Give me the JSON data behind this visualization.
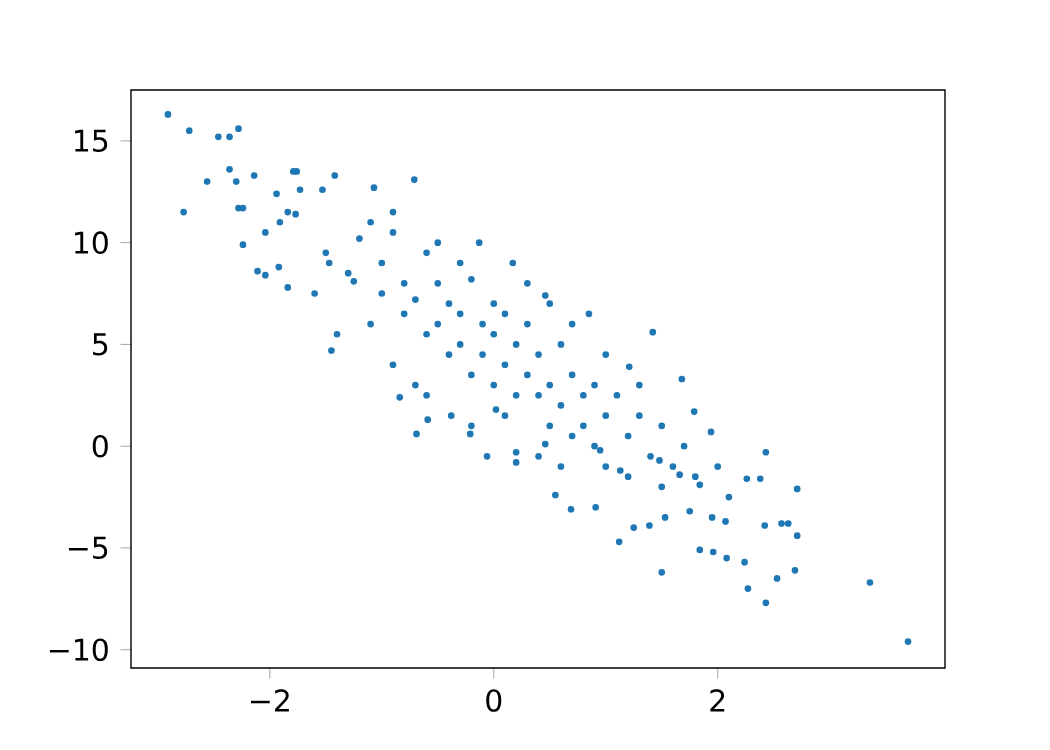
{
  "chart_data": {
    "type": "scatter",
    "color": "#1f77b4",
    "marker": "circle",
    "grid": false,
    "xlim": [
      -3.24,
      4.03
    ],
    "ylim": [
      -10.9,
      17.5
    ],
    "xticks": [
      {
        "value": -2,
        "label": "−2"
      },
      0,
      2
    ],
    "yticks": [
      {
        "value": -10,
        "label": "−10"
      },
      {
        "value": -5,
        "label": "−5"
      },
      0,
      5,
      10,
      15
    ],
    "x": [
      -2.91,
      -2.72,
      -2.56,
      -2.77,
      -2.46,
      -2.36,
      -2.28,
      -2.36,
      -2.3,
      -2.28,
      -2.24,
      -2.24,
      -2.14,
      -2.11,
      -2.04,
      -2.04,
      -1.94,
      -1.92,
      -1.84,
      -1.79,
      -1.76,
      -1.73,
      -1.77,
      -1.84,
      -1.91,
      -1.53,
      -1.42,
      -1.07,
      -0.71,
      -1.47,
      -1.45,
      -1.25,
      -0.84,
      -0.69,
      -0.59,
      -0.13,
      0.17,
      0.46,
      0.85,
      1.42,
      1.21,
      1.68,
      1.79,
      1.94,
      2.26,
      2.43,
      2.71,
      2.38,
      2.42,
      2.57,
      2.63,
      2.71,
      1.5,
      1.84,
      1.96,
      2.08,
      2.24,
      2.27,
      2.43,
      2.53,
      2.69,
      3.36,
      3.7,
      1.12,
      0.55,
      0.69,
      0.91,
      1.25,
      1.39,
      1.53,
      1.75,
      1.95,
      2.07,
      0.2,
      -0.06,
      -0.21,
      -0.38,
      0.02,
      0.46,
      0.95,
      1.13,
      1.48,
      1.66,
      1.84,
      -1.5,
      -1.3,
      -1.2,
      -1.0,
      -1.0,
      -0.9,
      -0.8,
      -0.8,
      -0.7,
      -0.6,
      -0.6,
      -0.5,
      -0.5,
      -0.4,
      -0.4,
      -0.3,
      -0.3,
      -0.2,
      -0.2,
      -0.1,
      -0.1,
      0.0,
      0.0,
      0.0,
      0.1,
      0.1,
      0.2,
      0.2,
      0.3,
      0.3,
      0.4,
      0.4,
      0.5,
      0.5,
      0.6,
      0.6,
      0.7,
      0.7,
      0.8,
      0.8,
      0.9,
      0.9,
      1.0,
      1.0,
      1.1,
      1.2,
      1.2,
      1.3,
      1.4,
      1.5,
      1.5,
      1.6,
      1.7,
      1.8,
      2.0,
      2.1,
      -1.6,
      -1.4,
      -1.1,
      -0.9,
      -0.7,
      -0.6,
      -1.1,
      -0.9,
      -0.5,
      -0.3,
      0.3,
      0.5,
      0.7,
      1.0,
      1.3,
      -0.2,
      0.1,
      0.4,
      0.6,
      0.2
    ],
    "values": [
      16.3,
      15.5,
      13.0,
      11.5,
      15.2,
      15.2,
      15.6,
      13.6,
      13.0,
      11.7,
      11.7,
      9.9,
      13.3,
      8.6,
      8.4,
      10.5,
      12.4,
      8.8,
      7.8,
      13.5,
      13.5,
      12.6,
      11.4,
      11.5,
      11.0,
      12.6,
      13.3,
      12.7,
      13.1,
      9.0,
      4.7,
      8.1,
      2.4,
      0.6,
      1.3,
      10.0,
      9.0,
      7.4,
      6.5,
      5.6,
      3.9,
      3.3,
      1.7,
      0.7,
      -1.6,
      -0.3,
      -2.1,
      -1.6,
      -3.9,
      -3.8,
      -3.8,
      -4.4,
      -6.2,
      -5.1,
      -5.2,
      -5.5,
      -5.7,
      -7.0,
      -7.7,
      -6.5,
      -6.1,
      -6.7,
      -9.6,
      -4.7,
      -2.4,
      -3.1,
      -3.0,
      -4.0,
      -3.9,
      -3.5,
      -3.2,
      -3.5,
      -3.7,
      -0.8,
      -0.5,
      0.6,
      1.5,
      1.8,
      0.1,
      -0.2,
      -1.2,
      -0.7,
      -1.4,
      -1.9,
      9.5,
      8.5,
      10.2,
      9.0,
      7.5,
      10.5,
      8.0,
      6.5,
      7.2,
      9.5,
      5.5,
      6.0,
      8.0,
      7.0,
      4.5,
      6.5,
      5.0,
      8.2,
      3.5,
      6.0,
      4.5,
      7.0,
      5.5,
      3.0,
      4.0,
      6.5,
      2.5,
      5.0,
      3.5,
      6.0,
      2.5,
      4.5,
      3.0,
      1.0,
      5.0,
      2.0,
      3.5,
      0.5,
      2.5,
      1.0,
      0.0,
      3.0,
      1.5,
      -1.0,
      2.5,
      0.5,
      -1.5,
      1.5,
      -0.5,
      -2.0,
      1.0,
      -1.0,
      0.0,
      -1.5,
      -1.0,
      -2.5,
      7.5,
      5.5,
      6.0,
      4.0,
      3.0,
      2.5,
      11.0,
      11.5,
      10.0,
      9.0,
      8.0,
      7.0,
      6.0,
      4.5,
      3.0,
      1.0,
      1.5,
      -0.5,
      -1.0,
      -0.3
    ]
  }
}
